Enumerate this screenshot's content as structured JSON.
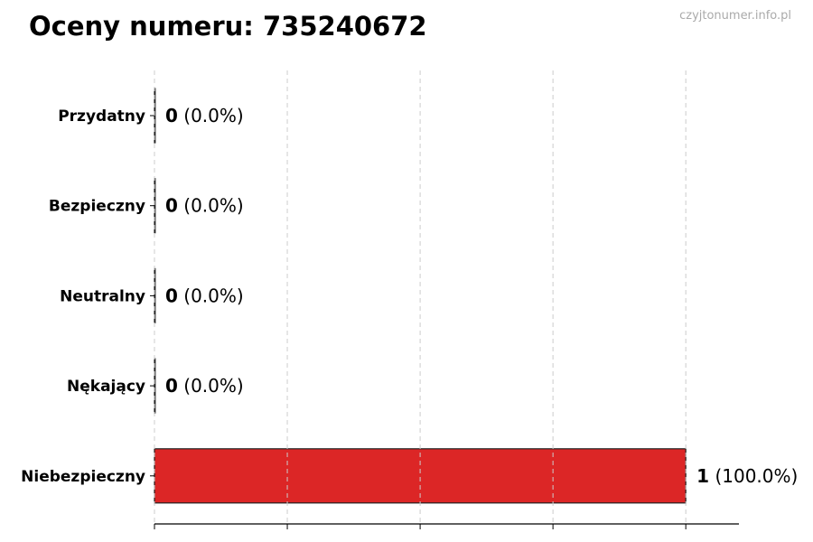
{
  "title": "Oceny numeru: 735240672",
  "watermark": "czyjtonumer.info.pl",
  "chart_data": {
    "type": "bar",
    "orientation": "horizontal",
    "categories": [
      "Przydatny",
      "Bezpieczny",
      "Neutralny",
      "Nękający",
      "Niebezpieczny"
    ],
    "values": [
      0,
      0,
      0,
      0,
      1
    ],
    "labels": [
      "(0.0%)",
      "(0.0%)",
      "(0.0%)",
      "(0.0%)",
      "(100.0%)"
    ],
    "colors": [
      "#dc2626",
      "#dc2626",
      "#dc2626",
      "#dc2626",
      "#dc2626"
    ],
    "xlim": [
      0,
      1.1
    ],
    "xticks": [
      0,
      0.25,
      0.5,
      0.75,
      1
    ],
    "xtick_labels_shown": false,
    "grid": "vertical dashed",
    "legend": "none"
  }
}
